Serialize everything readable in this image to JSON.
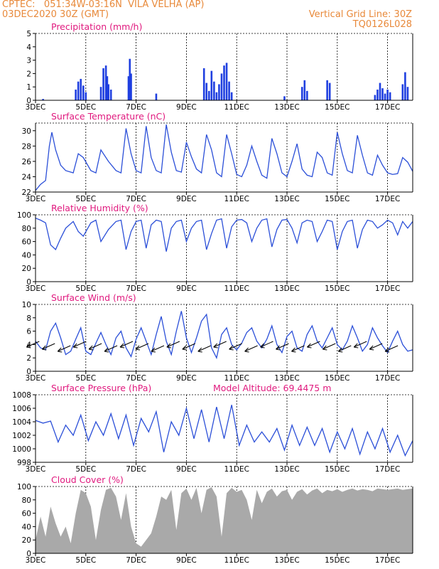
{
  "header": {
    "line1_left": "CPTEC:   051:34W-03:16N  VILA VELHA (AP)",
    "line2_left": "03DEC2020 30Z (GMT)",
    "line1_right": "Vertical Grid Line: 30Z",
    "line2_right": "TQ0126L028"
  },
  "colors": {
    "header": "#e8893a",
    "title": "#e0197e",
    "line": "#2b4fd8",
    "bar": "#1f3fe0",
    "cloud": "#a9a9a9"
  },
  "x_ticks": [
    "3DEC",
    "5DEC",
    "7DEC",
    "9DEC",
    "11DEC",
    "13DEC",
    "15DEC",
    "17DEC"
  ],
  "chart_data": [
    {
      "type": "bar",
      "title": "Precipitation (mm/h)",
      "ylim": [
        0,
        5
      ],
      "yticks": [
        0,
        1,
        2,
        3,
        4,
        5
      ],
      "x_range_days": [
        3,
        18
      ],
      "x": [
        3.3,
        4.6,
        4.7,
        4.8,
        4.9,
        5.0,
        5.6,
        5.7,
        5.8,
        5.85,
        5.9,
        6.0,
        6.7,
        6.75,
        6.8,
        7.8,
        9.7,
        9.8,
        9.9,
        10.0,
        10.1,
        10.2,
        10.3,
        10.4,
        10.5,
        10.6,
        10.7,
        10.8,
        12.9,
        13.6,
        13.7,
        13.8,
        14.6,
        14.7,
        16.5,
        16.6,
        16.7,
        16.8,
        16.9,
        17.0,
        17.1,
        17.6,
        17.7,
        17.8
      ],
      "values": [
        0.1,
        0.8,
        1.4,
        1.6,
        1.1,
        0.6,
        1.0,
        2.4,
        2.6,
        1.8,
        1.2,
        0.8,
        1.8,
        3.1,
        2.0,
        0.5,
        2.4,
        1.3,
        0.7,
        2.2,
        1.4,
        0.6,
        1.2,
        2.0,
        2.6,
        2.8,
        1.4,
        0.6,
        0.3,
        1.0,
        1.5,
        0.7,
        1.5,
        1.3,
        0.4,
        0.8,
        1.3,
        0.9,
        0.5,
        0.8,
        0.6,
        1.2,
        2.1,
        1.0
      ]
    },
    {
      "type": "line",
      "title": "Surface Temperature (nC)",
      "ylim": [
        22,
        31
      ],
      "yticks": [
        22,
        24,
        26,
        28,
        30
      ],
      "x": [
        3.0,
        3.2,
        3.4,
        3.55,
        3.65,
        3.8,
        4.0,
        4.2,
        4.5,
        4.7,
        4.9,
        5.2,
        5.4,
        5.6,
        5.9,
        6.2,
        6.4,
        6.6,
        6.8,
        7.0,
        7.2,
        7.4,
        7.6,
        7.8,
        8.0,
        8.2,
        8.4,
        8.6,
        8.8,
        9.0,
        9.2,
        9.4,
        9.6,
        9.8,
        10.0,
        10.2,
        10.4,
        10.6,
        10.8,
        11.0,
        11.2,
        11.4,
        11.6,
        11.8,
        12.0,
        12.2,
        12.4,
        12.6,
        12.8,
        13.0,
        13.2,
        13.4,
        13.6,
        13.8,
        14.0,
        14.2,
        14.4,
        14.6,
        14.8,
        15.0,
        15.2,
        15.4,
        15.6,
        15.8,
        16.0,
        16.2,
        16.4,
        16.6,
        16.8,
        17.0,
        17.2,
        17.4,
        17.6,
        17.8,
        18.0
      ],
      "values": [
        22.2,
        23.0,
        23.5,
        28.0,
        29.8,
        27.5,
        25.5,
        24.8,
        24.5,
        27.0,
        26.5,
        24.8,
        24.5,
        27.5,
        26.0,
        24.8,
        24.5,
        30.3,
        27.0,
        24.8,
        24.5,
        30.6,
        26.5,
        24.8,
        24.5,
        30.8,
        27.2,
        24.8,
        24.6,
        28.5,
        26.6,
        25.0,
        24.5,
        29.5,
        27.5,
        24.5,
        24.0,
        29.5,
        27.0,
        24.3,
        24.0,
        25.5,
        28.0,
        26.0,
        24.2,
        23.8,
        29.0,
        27.0,
        24.5,
        24.0,
        26.0,
        28.3,
        25.0,
        24.2,
        24.0,
        27.2,
        26.5,
        24.5,
        24.2,
        29.8,
        27.0,
        24.8,
        24.5,
        29.4,
        26.8,
        24.5,
        24.2,
        26.8,
        25.5,
        24.5,
        24.3,
        24.4,
        26.5,
        25.9,
        24.7
      ]
    },
    {
      "type": "line",
      "title": "Relative Humidity (%)",
      "ylim": [
        0,
        100
      ],
      "yticks": [
        0,
        20,
        40,
        60,
        80,
        100
      ],
      "x": [
        3.0,
        3.2,
        3.4,
        3.6,
        3.8,
        4.0,
        4.2,
        4.5,
        4.7,
        4.9,
        5.2,
        5.4,
        5.6,
        5.9,
        6.2,
        6.4,
        6.6,
        6.8,
        7.0,
        7.2,
        7.4,
        7.6,
        7.8,
        8.0,
        8.2,
        8.4,
        8.6,
        8.8,
        9.0,
        9.2,
        9.4,
        9.6,
        9.8,
        10.0,
        10.2,
        10.4,
        10.6,
        10.8,
        11.0,
        11.2,
        11.4,
        11.6,
        11.8,
        12.0,
        12.2,
        12.4,
        12.6,
        12.8,
        13.0,
        13.2,
        13.4,
        13.6,
        13.8,
        14.0,
        14.2,
        14.4,
        14.6,
        14.8,
        15.0,
        15.2,
        15.4,
        15.6,
        15.8,
        16.0,
        16.2,
        16.4,
        16.6,
        16.8,
        17.0,
        17.2,
        17.4,
        17.6,
        17.8,
        18.0
      ],
      "values": [
        95,
        92,
        88,
        55,
        48,
        65,
        80,
        90,
        75,
        68,
        88,
        92,
        60,
        78,
        90,
        92,
        48,
        75,
        90,
        92,
        50,
        85,
        92,
        90,
        45,
        80,
        90,
        92,
        60,
        80,
        90,
        92,
        48,
        72,
        92,
        94,
        50,
        82,
        92,
        93,
        88,
        60,
        80,
        92,
        94,
        52,
        78,
        92,
        93,
        80,
        58,
        88,
        92,
        90,
        60,
        75,
        92,
        90,
        48,
        75,
        90,
        92,
        50,
        78,
        92,
        90,
        80,
        85,
        92,
        88,
        70,
        90,
        80,
        90
      ]
    },
    {
      "type": "line",
      "title": "Surface Wind (m/s)",
      "ylim": [
        0,
        10
      ],
      "yticks": [
        0,
        2,
        4,
        6,
        8,
        10
      ],
      "x": [
        3.0,
        3.2,
        3.4,
        3.6,
        3.8,
        4.0,
        4.2,
        4.4,
        4.6,
        4.8,
        5.0,
        5.2,
        5.4,
        5.6,
        5.8,
        6.0,
        6.2,
        6.4,
        6.6,
        6.8,
        7.0,
        7.2,
        7.4,
        7.6,
        7.8,
        8.0,
        8.2,
        8.4,
        8.6,
        8.8,
        9.0,
        9.2,
        9.4,
        9.6,
        9.8,
        10.0,
        10.2,
        10.4,
        10.6,
        10.8,
        11.0,
        11.2,
        11.4,
        11.6,
        11.8,
        12.0,
        12.2,
        12.4,
        12.6,
        12.8,
        13.0,
        13.2,
        13.4,
        13.6,
        13.8,
        14.0,
        14.2,
        14.4,
        14.6,
        14.8,
        15.0,
        15.2,
        15.4,
        15.6,
        15.8,
        16.0,
        16.2,
        16.4,
        16.6,
        16.8,
        17.0,
        17.2,
        17.4,
        17.6,
        17.8,
        18.0
      ],
      "values": [
        4.5,
        3.5,
        3.2,
        6.0,
        7.2,
        5.0,
        2.5,
        3.0,
        4.8,
        6.5,
        3.0,
        2.5,
        4.2,
        5.8,
        4.0,
        2.5,
        5.0,
        6.0,
        3.5,
        2.2,
        4.8,
        6.5,
        4.5,
        2.5,
        5.5,
        8.2,
        4.5,
        2.5,
        6.0,
        9.0,
        5.0,
        2.8,
        5.0,
        7.5,
        8.5,
        3.5,
        2.0,
        5.5,
        6.5,
        4.0,
        3.2,
        4.2,
        5.8,
        6.5,
        4.5,
        3.5,
        4.8,
        6.8,
        4.0,
        2.8,
        5.2,
        6.0,
        3.5,
        3.0,
        5.5,
        6.8,
        4.5,
        3.5,
        5.0,
        6.5,
        4.0,
        3.2,
        4.5,
        6.8,
        5.0,
        3.0,
        4.0,
        6.5,
        5.0,
        3.8,
        2.8,
        4.5,
        6.0,
        4.0,
        3.0,
        3.2
      ]
    },
    {
      "type": "line",
      "title": "Surface Pressure (hPa)",
      "annotation": "Model Altitude: 69.4475 m",
      "ylim": [
        998,
        1008
      ],
      "yticks": [
        998,
        1000,
        1002,
        1004,
        1006,
        1008
      ],
      "x": [
        3.0,
        3.3,
        3.6,
        3.9,
        4.2,
        4.5,
        4.8,
        5.1,
        5.4,
        5.7,
        6.0,
        6.3,
        6.6,
        6.9,
        7.2,
        7.5,
        7.8,
        8.1,
        8.4,
        8.7,
        9.0,
        9.3,
        9.6,
        9.9,
        10.2,
        10.5,
        10.8,
        11.1,
        11.4,
        11.7,
        12.0,
        12.3,
        12.6,
        12.9,
        13.2,
        13.5,
        13.8,
        14.1,
        14.4,
        14.7,
        15.0,
        15.3,
        15.6,
        15.9,
        16.2,
        16.5,
        16.8,
        17.1,
        17.4,
        17.7,
        18.0
      ],
      "values": [
        1004.2,
        1003.8,
        1004.1,
        1001.0,
        1003.5,
        1002.0,
        1005.0,
        1001.2,
        1004.0,
        1002.0,
        1005.2,
        1001.5,
        1005.0,
        1000.5,
        1004.5,
        1002.5,
        1005.5,
        999.5,
        1004.0,
        1002.0,
        1006.0,
        1001.5,
        1005.8,
        1001.0,
        1006.2,
        1001.5,
        1006.5,
        1000.5,
        1003.5,
        1001.0,
        1002.5,
        1001.0,
        1003.0,
        999.8,
        1003.5,
        1000.5,
        1003.2,
        1000.5,
        1003.0,
        999.5,
        1002.5,
        1000.0,
        1003.0,
        999.2,
        1002.5,
        1000.0,
        1003.0,
        999.5,
        1002.0,
        999.0,
        1001.2
      ]
    },
    {
      "type": "area",
      "title": "Cloud Cover (%)",
      "ylim": [
        0,
        100
      ],
      "yticks": [
        0,
        20,
        40,
        60,
        80,
        100
      ],
      "x": [
        3.0,
        3.2,
        3.4,
        3.6,
        3.8,
        4.0,
        4.2,
        4.4,
        4.6,
        4.8,
        5.0,
        5.2,
        5.4,
        5.6,
        5.8,
        6.0,
        6.2,
        6.4,
        6.6,
        6.8,
        7.0,
        7.2,
        7.4,
        7.6,
        7.8,
        8.0,
        8.2,
        8.4,
        8.6,
        8.8,
        9.0,
        9.2,
        9.4,
        9.6,
        9.8,
        10.0,
        10.2,
        10.4,
        10.6,
        10.8,
        11.0,
        11.2,
        11.4,
        11.6,
        11.8,
        12.0,
        12.2,
        12.4,
        12.6,
        12.8,
        13.0,
        13.2,
        13.4,
        13.6,
        13.8,
        14.0,
        14.2,
        14.4,
        14.6,
        14.8,
        15.0,
        15.2,
        15.4,
        15.6,
        15.8,
        16.0,
        16.2,
        16.4,
        16.6,
        16.8,
        17.0,
        17.2,
        17.4,
        17.6,
        17.8,
        18.0
      ],
      "values": [
        20,
        55,
        25,
        70,
        45,
        25,
        40,
        15,
        60,
        95,
        90,
        70,
        20,
        65,
        95,
        98,
        85,
        50,
        90,
        40,
        15,
        10,
        20,
        30,
        55,
        85,
        80,
        95,
        35,
        90,
        97,
        80,
        98,
        60,
        95,
        99,
        85,
        25,
        90,
        98,
        92,
        95,
        80,
        50,
        95,
        75,
        92,
        97,
        85,
        93,
        95,
        80,
        92,
        96,
        88,
        94,
        97,
        90,
        95,
        93,
        96,
        92,
        95,
        97,
        94,
        96,
        95,
        93,
        97,
        96,
        95,
        96,
        97,
        95,
        96,
        97
      ]
    }
  ]
}
